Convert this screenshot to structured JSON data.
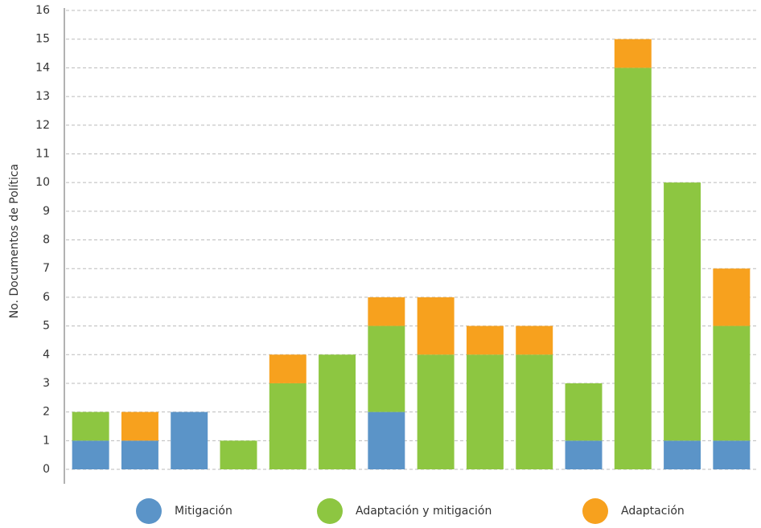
{
  "chart_data": {
    "type": "stacked_bar",
    "y_label": "No. Documentos de Política",
    "categories": [
      null,
      null,
      null,
      null,
      null,
      null,
      null,
      null,
      null,
      null,
      null,
      null,
      null,
      null
    ],
    "series": [
      {
        "name": "Mitigación",
        "color": "#5b94c8",
        "values": [
          1,
          1,
          2,
          0,
          0,
          0,
          2,
          0,
          0,
          0,
          1,
          0,
          1,
          1
        ]
      },
      {
        "name": "Adaptación y mitigación",
        "color": "#8dc641",
        "values": [
          1,
          0,
          0,
          1,
          3,
          4,
          3,
          4,
          4,
          4,
          2,
          14,
          9,
          4
        ]
      },
      {
        "name": "Adaptación",
        "color": "#f7a11e",
        "values": [
          0,
          1,
          0,
          0,
          1,
          0,
          1,
          2,
          1,
          1,
          0,
          1,
          0,
          2
        ]
      }
    ],
    "ylim": [
      0,
      16
    ],
    "yticks": [
      0,
      1,
      2,
      3,
      4,
      5,
      6,
      7,
      8,
      9,
      10,
      11,
      12,
      13,
      14,
      15,
      16
    ],
    "grid": true,
    "legend": "bottom"
  }
}
